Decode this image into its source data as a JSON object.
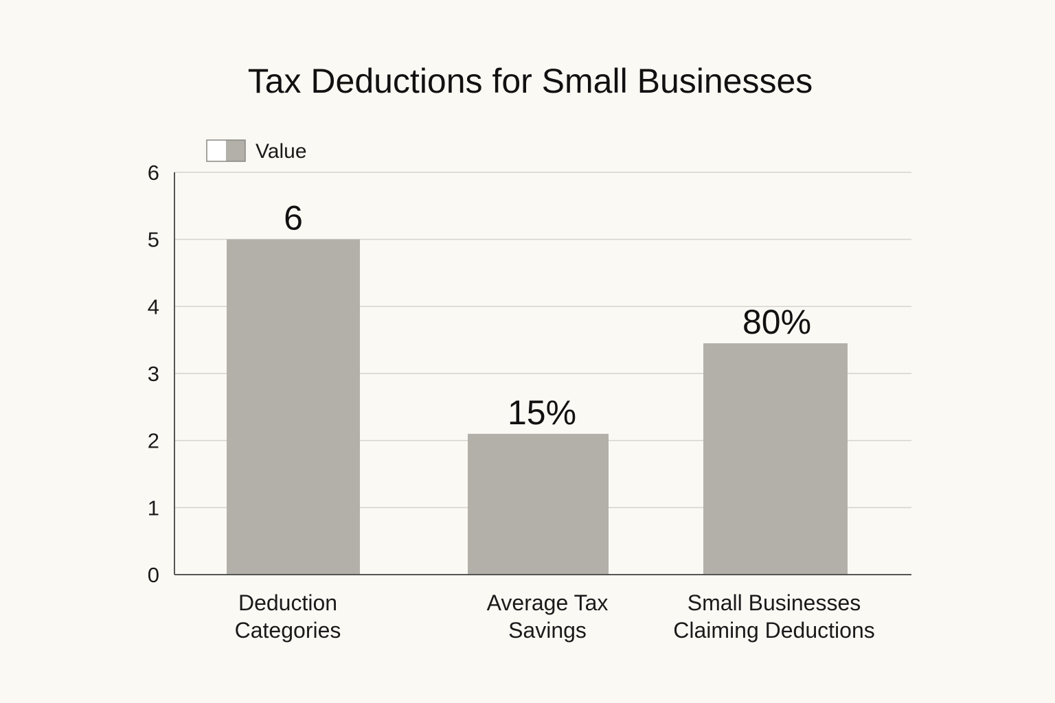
{
  "chart_data": {
    "type": "bar",
    "title": "Tax Deductions for Small Businesses",
    "xlabel": "",
    "ylabel": "",
    "categories": [
      [
        "Deduction",
        "Categories"
      ],
      [
        "Average Tax",
        "Savings"
      ],
      [
        "Small Businesses",
        "Claiming Deductions"
      ]
    ],
    "series": [
      {
        "name": "Value",
        "values": [
          5,
          2.1,
          3.45
        ],
        "data_labels": [
          "6",
          "15%",
          "80%"
        ]
      }
    ],
    "ylim": [
      0,
      6
    ],
    "yticks": [
      "0",
      "1",
      "2",
      "3",
      "4",
      "5",
      "6"
    ],
    "grid": true,
    "legend": "top-left",
    "colors": {
      "bar": "#b3afa9",
      "background": "#fbf9f4",
      "grid": "#d6d3cd",
      "axis": "#555555"
    }
  }
}
